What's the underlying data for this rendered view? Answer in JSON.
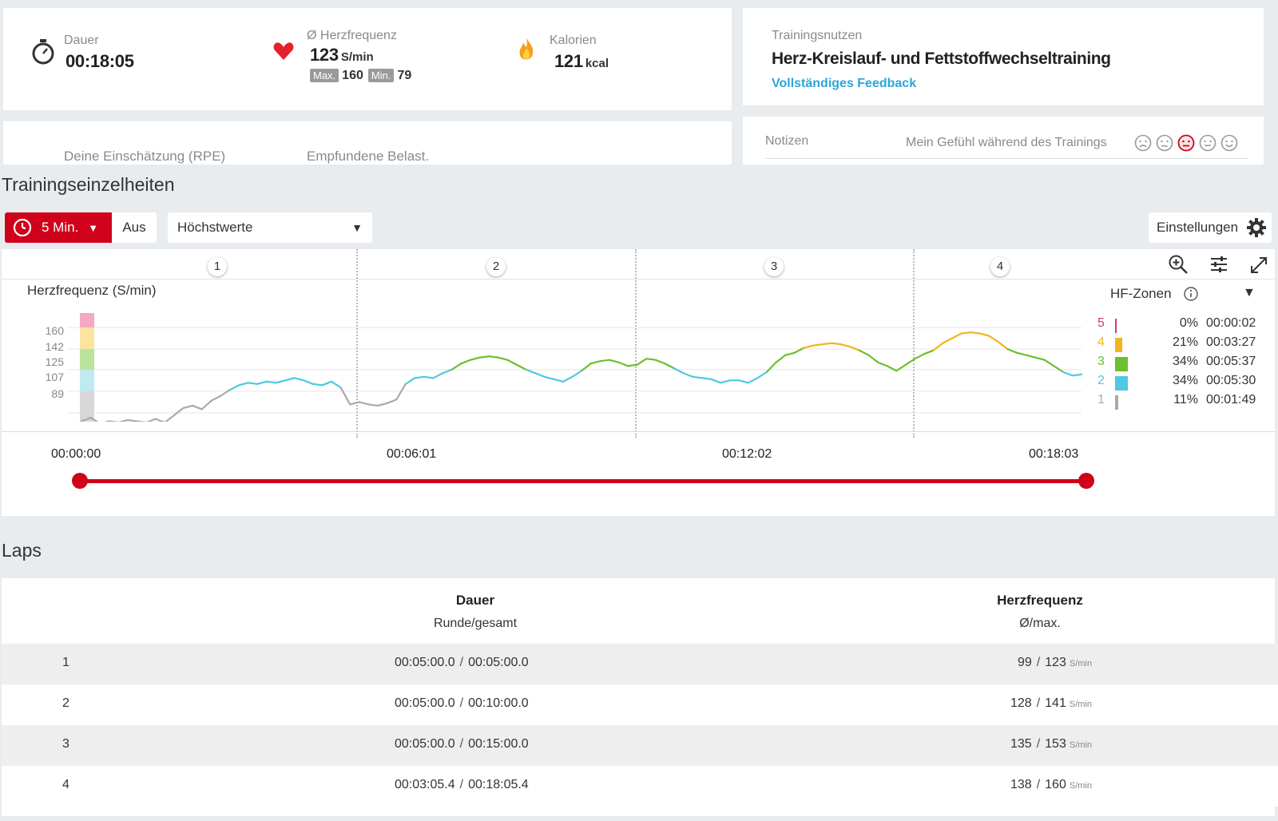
{
  "summary": {
    "duration": {
      "label": "Dauer",
      "value": "00:18:05"
    },
    "hr": {
      "label": "Ø Herzfrequenz",
      "value": "123",
      "unit": "S/min",
      "max_label": "Max.",
      "max_value": "160",
      "min_label": "Min.",
      "min_value": "79"
    },
    "calories": {
      "label": "Kalorien",
      "value": "121",
      "unit": "kcal"
    }
  },
  "benefit": {
    "label": "Trainingsnutzen",
    "title": "Herz-Kreislauf- und Fettstoffwechseltraining",
    "link": "Vollständiges Feedback"
  },
  "rpe": {
    "label1": "Deine Einschätzung (RPE)",
    "label2": "Empfundene Belast."
  },
  "notes": {
    "label": "Notizen",
    "feeling_label": "Mein Gefühl während des Trainings",
    "selected_face": 3
  },
  "details": {
    "title": "Trainingseinzelheiten",
    "interval_button": "5 Min.",
    "off_button": "Aus",
    "select_value": "Höchstwerte",
    "settings_button": "Einstellungen"
  },
  "chart": {
    "laps": [
      "1",
      "2",
      "3",
      "4"
    ],
    "ylabel": "Herzfrequenz (S/min)",
    "zones_label": "HF-Zonen",
    "time_labels": [
      "00:00:00",
      "00:06:01",
      "00:12:02",
      "00:18:03"
    ]
  },
  "chart_data": {
    "type": "line",
    "title": "",
    "ylabel": "Herzfrequenz (S/min)",
    "yticks": [
      160,
      142,
      125,
      107,
      89
    ],
    "ylim": [
      79,
      172
    ],
    "xlim": [
      0,
      1085
    ],
    "x_unit": "seconds",
    "lap_boundaries": [
      300,
      600,
      900
    ],
    "zone_thresholds": {
      "1": [
        79,
        107
      ],
      "2": [
        107,
        125
      ],
      "3": [
        125,
        142
      ],
      "4": [
        142,
        160
      ],
      "5": [
        160,
        172
      ]
    },
    "zone_colors": {
      "1": "#aaaaaa",
      "2": "#4fc8e3",
      "3": "#6cbf2f",
      "4": "#f2b51b",
      "5": "#d8357a"
    },
    "x": [
      0,
      10,
      20,
      30,
      40,
      50,
      60,
      70,
      80,
      90,
      100,
      110,
      120,
      130,
      140,
      150,
      160,
      170,
      180,
      190,
      200,
      210,
      220,
      230,
      240,
      250,
      260,
      270,
      280,
      290,
      300,
      310,
      320,
      330,
      340,
      350,
      360,
      370,
      380,
      390,
      400,
      410,
      420,
      430,
      440,
      450,
      460,
      470,
      480,
      490,
      500,
      510,
      520,
      530,
      540,
      550,
      560,
      570,
      580,
      590,
      600,
      610,
      620,
      630,
      640,
      650,
      660,
      670,
      680,
      690,
      700,
      710,
      720,
      730,
      740,
      750,
      760,
      770,
      780,
      790,
      800,
      810,
      820,
      830,
      840,
      850,
      860,
      870,
      880,
      890,
      900,
      910,
      920,
      930,
      940,
      950,
      960,
      970,
      980,
      990,
      1000,
      1010,
      1020,
      1030,
      1040,
      1050,
      1060,
      1070,
      1080
    ],
    "y": [
      82,
      85,
      80,
      82,
      81,
      83,
      82,
      81,
      84,
      81,
      87,
      93,
      95,
      92,
      99,
      103,
      108,
      112,
      114,
      113,
      115,
      114,
      116,
      118,
      116,
      113,
      112,
      115,
      110,
      96,
      98,
      96,
      95,
      97,
      100,
      113,
      118,
      119,
      118,
      122,
      125,
      130,
      133,
      135,
      136,
      135,
      133,
      129,
      125,
      122,
      119,
      117,
      115,
      119,
      124,
      130,
      132,
      133,
      131,
      128,
      129,
      134,
      133,
      130,
      126,
      122,
      119,
      118,
      117,
      114,
      116,
      116,
      114,
      118,
      123,
      131,
      137,
      139,
      143,
      145,
      146,
      147,
      146,
      144,
      141,
      137,
      131,
      128,
      124,
      129,
      134,
      138,
      141,
      147,
      151,
      155,
      156,
      155,
      153,
      148,
      142,
      139,
      137,
      135,
      133,
      128,
      123,
      120,
      121
    ]
  },
  "hf_zones": [
    {
      "zone": "5",
      "percent": "0%",
      "time": "00:00:02",
      "color": "#d8357a",
      "fraction": 0.0
    },
    {
      "zone": "4",
      "percent": "21%",
      "time": "00:03:27",
      "color": "#f2b51b",
      "fraction": 0.21
    },
    {
      "zone": "3",
      "percent": "34%",
      "time": "00:05:37",
      "color": "#6cbf2f",
      "fraction": 0.34
    },
    {
      "zone": "2",
      "percent": "34%",
      "time": "00:05:30",
      "color": "#4fc8e3",
      "fraction": 0.34
    },
    {
      "zone": "1",
      "percent": "11%",
      "time": "00:01:49",
      "color": "#aaaaaa",
      "fraction": 0.11
    }
  ],
  "laps_table": {
    "title": "Laps",
    "col_duration": "Dauer",
    "col_duration_sub": "Runde/gesamt",
    "col_hr": "Herzfrequenz",
    "col_hr_sub": "Ø/max.",
    "hr_unit": "S/min",
    "rows": [
      {
        "n": "1",
        "lap": "00:05:00.0",
        "total": "00:05:00.0",
        "avg": "99",
        "max": "123"
      },
      {
        "n": "2",
        "lap": "00:05:00.0",
        "total": "00:10:00.0",
        "avg": "128",
        "max": "141"
      },
      {
        "n": "3",
        "lap": "00:05:00.0",
        "total": "00:15:00.0",
        "avg": "135",
        "max": "153"
      },
      {
        "n": "4",
        "lap": "00:03:05.4",
        "total": "00:18:05.4",
        "avg": "138",
        "max": "160"
      }
    ]
  },
  "colors": {
    "accent": "#d0021b",
    "link": "#2ba6d9"
  }
}
